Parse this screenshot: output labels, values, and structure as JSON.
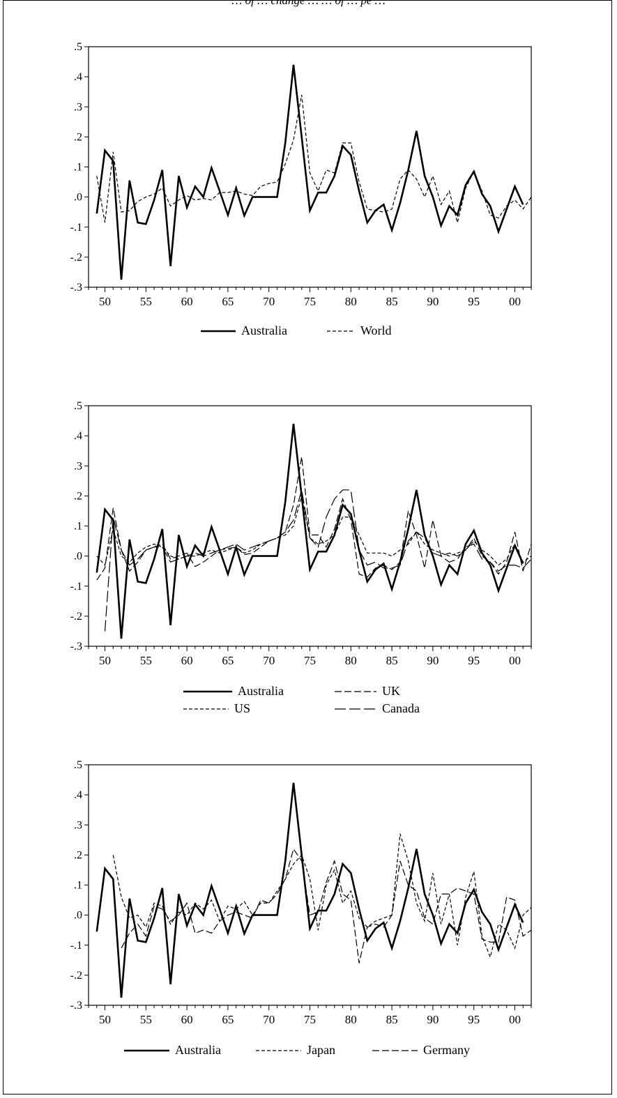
{
  "caption": "… of … change … … of … pe …",
  "chart_data": [
    {
      "type": "line",
      "x": [
        49,
        50,
        51,
        52,
        53,
        54,
        55,
        56,
        57,
        58,
        59,
        60,
        61,
        62,
        63,
        64,
        65,
        66,
        67,
        68,
        69,
        70,
        71,
        72,
        73,
        74,
        75,
        76,
        77,
        78,
        79,
        80,
        81,
        82,
        83,
        84,
        85,
        86,
        87,
        88,
        89,
        90,
        91,
        92,
        93,
        94,
        95,
        96,
        97,
        98,
        99,
        100,
        101,
        102
      ],
      "xticks": [
        "50",
        "55",
        "60",
        "65",
        "70",
        "75",
        "80",
        "85",
        "90",
        "95",
        "00"
      ],
      "xtick_values": [
        50,
        55,
        60,
        65,
        70,
        75,
        80,
        85,
        90,
        95,
        100
      ],
      "yticks": [
        ".5",
        ".4",
        ".3",
        ".2",
        ".1",
        ".0",
        "-.1",
        "-.2",
        "-.3"
      ],
      "ylim": [
        -0.3,
        0.5
      ],
      "xlim": [
        48,
        102
      ],
      "series": [
        {
          "name": "Australia",
          "style": "solid",
          "values": [
            -0.055,
            0.155,
            0.12,
            -0.275,
            0.055,
            -0.085,
            -0.09,
            -0.01,
            0.09,
            -0.23,
            0.07,
            -0.035,
            0.035,
            0.0,
            0.097,
            0.02,
            -0.06,
            0.03,
            -0.062,
            0.0,
            0.0,
            0.0,
            0.0,
            0.18,
            0.44,
            0.2,
            -0.045,
            0.015,
            0.015,
            0.07,
            0.17,
            0.14,
            0.02,
            -0.085,
            -0.045,
            -0.025,
            -0.11,
            -0.02,
            0.09,
            0.22,
            0.07,
            0.0,
            -0.095,
            -0.03,
            -0.06,
            0.04,
            0.085,
            0.01,
            -0.03,
            -0.115,
            -0.04,
            0.035,
            -0.025,
            null
          ]
        },
        {
          "name": "World",
          "style": "dash",
          "values": [
            0.07,
            -0.085,
            0.15,
            -0.05,
            -0.045,
            -0.015,
            0.0,
            0.01,
            0.03,
            -0.03,
            -0.01,
            0.005,
            -0.01,
            -0.005,
            -0.01,
            0.015,
            0.015,
            0.02,
            0.01,
            0.005,
            0.035,
            0.045,
            0.05,
            0.11,
            0.19,
            0.34,
            0.08,
            0.02,
            0.09,
            0.08,
            0.18,
            0.18,
            0.05,
            -0.04,
            -0.045,
            -0.05,
            -0.04,
            0.06,
            0.09,
            0.06,
            0.0,
            0.07,
            -0.025,
            0.02,
            -0.085,
            0.03,
            0.085,
            0.02,
            -0.06,
            -0.07,
            -0.03,
            -0.01,
            -0.04,
            0.0
          ]
        }
      ],
      "legend": [
        "Australia",
        "World"
      ]
    },
    {
      "type": "line",
      "x": [
        49,
        50,
        51,
        52,
        53,
        54,
        55,
        56,
        57,
        58,
        59,
        60,
        61,
        62,
        63,
        64,
        65,
        66,
        67,
        68,
        69,
        70,
        71,
        72,
        73,
        74,
        75,
        76,
        77,
        78,
        79,
        80,
        81,
        82,
        83,
        84,
        85,
        86,
        87,
        88,
        89,
        90,
        91,
        92,
        93,
        94,
        95,
        96,
        97,
        98,
        99,
        100,
        101,
        102
      ],
      "xticks": [
        "50",
        "55",
        "60",
        "65",
        "70",
        "75",
        "80",
        "85",
        "90",
        "95",
        "00"
      ],
      "xtick_values": [
        50,
        55,
        60,
        65,
        70,
        75,
        80,
        85,
        90,
        95,
        100
      ],
      "yticks": [
        ".5",
        ".4",
        ".3",
        ".2",
        ".1",
        ".0",
        "-.1",
        "-.2",
        "-.3"
      ],
      "ylim": [
        -0.3,
        0.5
      ],
      "xlim": [
        48,
        102
      ],
      "series": [
        {
          "name": "Australia",
          "style": "solid",
          "values": [
            -0.055,
            0.155,
            0.12,
            -0.275,
            0.055,
            -0.085,
            -0.09,
            -0.01,
            0.09,
            -0.23,
            0.07,
            -0.035,
            0.035,
            0.0,
            0.097,
            0.02,
            -0.06,
            0.03,
            -0.062,
            0.0,
            0.0,
            0.0,
            0.0,
            0.18,
            0.44,
            0.2,
            -0.045,
            0.015,
            0.015,
            0.07,
            0.17,
            0.14,
            0.02,
            -0.085,
            -0.045,
            -0.025,
            -0.11,
            -0.02,
            0.09,
            0.22,
            0.07,
            0.0,
            -0.095,
            -0.03,
            -0.06,
            0.04,
            0.085,
            0.01,
            -0.03,
            -0.115,
            -0.04,
            0.035,
            -0.025,
            null
          ]
        },
        {
          "name": "UK",
          "style": "longdash",
          "values": [
            -0.08,
            -0.04,
            0.16,
            0.02,
            -0.05,
            -0.02,
            0.02,
            0.03,
            0.04,
            -0.01,
            0.0,
            0.01,
            -0.035,
            -0.02,
            0.0,
            0.02,
            0.025,
            0.03,
            0.005,
            0.01,
            0.03,
            0.05,
            0.06,
            0.08,
            0.17,
            0.33,
            0.07,
            0.07,
            0.03,
            0.09,
            0.19,
            0.12,
            -0.06,
            -0.07,
            -0.04,
            -0.03,
            -0.045,
            -0.02,
            0.15,
            0.07,
            -0.04,
            0.12,
            0.0,
            0.01,
            0.0,
            0.02,
            0.06,
            0.0,
            -0.02,
            -0.06,
            -0.02,
            0.08,
            -0.05,
            0.04
          ]
        },
        {
          "name": "US",
          "style": "dash",
          "values": [
            0.0,
            -0.03,
            0.09,
            0.0,
            -0.02,
            0.01,
            0.03,
            0.04,
            0.03,
            0.0,
            -0.01,
            0.0,
            0.0,
            0.01,
            0.02,
            0.01,
            0.02,
            0.03,
            0.01,
            0.02,
            0.04,
            0.05,
            0.06,
            0.07,
            0.1,
            0.2,
            0.06,
            0.04,
            0.05,
            0.07,
            0.13,
            0.13,
            0.07,
            0.01,
            0.01,
            0.01,
            0.0,
            0.02,
            0.04,
            0.08,
            0.04,
            0.02,
            0.01,
            0.0,
            0.01,
            0.02,
            0.05,
            0.02,
            0.0,
            -0.03,
            -0.01,
            0.04,
            -0.02,
            0.0
          ]
        },
        {
          "name": "Canada",
          "style": "verylongdash",
          "values": [
            null,
            -0.25,
            0.13,
            0.02,
            -0.03,
            -0.01,
            0.02,
            0.03,
            0.03,
            -0.02,
            -0.01,
            0.0,
            0.01,
            0.0,
            0.01,
            0.02,
            0.03,
            0.04,
            0.02,
            0.03,
            0.04,
            0.05,
            0.06,
            0.08,
            0.12,
            0.22,
            0.06,
            0.03,
            0.13,
            0.19,
            0.22,
            0.22,
            0.02,
            -0.03,
            -0.02,
            -0.04,
            -0.04,
            -0.03,
            0.05,
            0.08,
            0.06,
            0.01,
            0.0,
            -0.02,
            -0.01,
            0.03,
            0.04,
            -0.01,
            -0.02,
            -0.05,
            -0.03,
            -0.03,
            -0.04,
            -0.01
          ]
        }
      ],
      "legend": [
        "Australia",
        "UK",
        "US",
        "Canada"
      ]
    },
    {
      "type": "line",
      "x": [
        49,
        50,
        51,
        52,
        53,
        54,
        55,
        56,
        57,
        58,
        59,
        60,
        61,
        62,
        63,
        64,
        65,
        66,
        67,
        68,
        69,
        70,
        71,
        72,
        73,
        74,
        75,
        76,
        77,
        78,
        79,
        80,
        81,
        82,
        83,
        84,
        85,
        86,
        87,
        88,
        89,
        90,
        91,
        92,
        93,
        94,
        95,
        96,
        97,
        98,
        99,
        100,
        101,
        102
      ],
      "xticks": [
        "50",
        "55",
        "60",
        "65",
        "70",
        "75",
        "80",
        "85",
        "90",
        "95",
        "00"
      ],
      "xtick_values": [
        50,
        55,
        60,
        65,
        70,
        75,
        80,
        85,
        90,
        95,
        100
      ],
      "yticks": [
        ".5",
        ".4",
        ".3",
        ".2",
        ".1",
        ".0",
        "-.1",
        "-.2",
        "-.3"
      ],
      "ylim": [
        -0.3,
        0.5
      ],
      "xlim": [
        48,
        102
      ],
      "series": [
        {
          "name": "Australia",
          "style": "solid",
          "values": [
            -0.055,
            0.155,
            0.12,
            -0.275,
            0.055,
            -0.085,
            -0.09,
            -0.01,
            0.09,
            -0.23,
            0.07,
            -0.035,
            0.035,
            0.0,
            0.097,
            0.02,
            -0.06,
            0.03,
            -0.062,
            0.0,
            0.0,
            0.0,
            0.0,
            0.18,
            0.44,
            0.2,
            -0.045,
            0.015,
            0.015,
            0.07,
            0.17,
            0.14,
            0.02,
            -0.085,
            -0.045,
            -0.025,
            -0.11,
            -0.02,
            0.09,
            0.22,
            0.07,
            0.0,
            -0.095,
            -0.03,
            -0.06,
            0.04,
            0.085,
            0.01,
            -0.03,
            -0.115,
            -0.04,
            0.035,
            -0.025,
            null
          ]
        },
        {
          "name": "Japan",
          "style": "dash",
          "values": [
            null,
            null,
            0.2,
            0.06,
            -0.01,
            0.0,
            -0.04,
            0.04,
            0.03,
            -0.03,
            0.01,
            0.0,
            0.04,
            0.02,
            0.05,
            -0.02,
            0.03,
            0.02,
            0.045,
            0.0,
            0.04,
            0.04,
            0.08,
            0.12,
            0.17,
            0.2,
            0.12,
            -0.05,
            0.1,
            0.15,
            0.04,
            0.08,
            -0.01,
            -0.04,
            -0.02,
            -0.01,
            0.0,
            0.27,
            0.18,
            0.04,
            -0.02,
            0.14,
            -0.03,
            0.07,
            -0.1,
            0.06,
            0.145,
            -0.07,
            -0.14,
            -0.03,
            -0.05,
            -0.11,
            0.0,
            0.025
          ]
        },
        {
          "name": "Germany",
          "style": "longdash",
          "values": [
            null,
            null,
            null,
            -0.11,
            -0.06,
            -0.03,
            -0.07,
            0.03,
            0.02,
            -0.02,
            0.0,
            0.04,
            -0.06,
            -0.05,
            -0.06,
            -0.02,
            0.0,
            0.01,
            0.0,
            -0.01,
            0.05,
            0.04,
            0.07,
            0.12,
            0.22,
            0.18,
            0.0,
            0.01,
            0.11,
            0.18,
            0.07,
            0.05,
            -0.16,
            -0.04,
            -0.03,
            -0.04,
            0.0,
            0.18,
            0.1,
            0.08,
            -0.01,
            -0.03,
            0.07,
            0.07,
            0.09,
            0.08,
            0.07,
            -0.08,
            -0.09,
            -0.09,
            0.06,
            0.05,
            -0.07,
            -0.05
          ]
        }
      ],
      "legend": [
        "Australia",
        "Japan",
        "Germany"
      ]
    }
  ]
}
